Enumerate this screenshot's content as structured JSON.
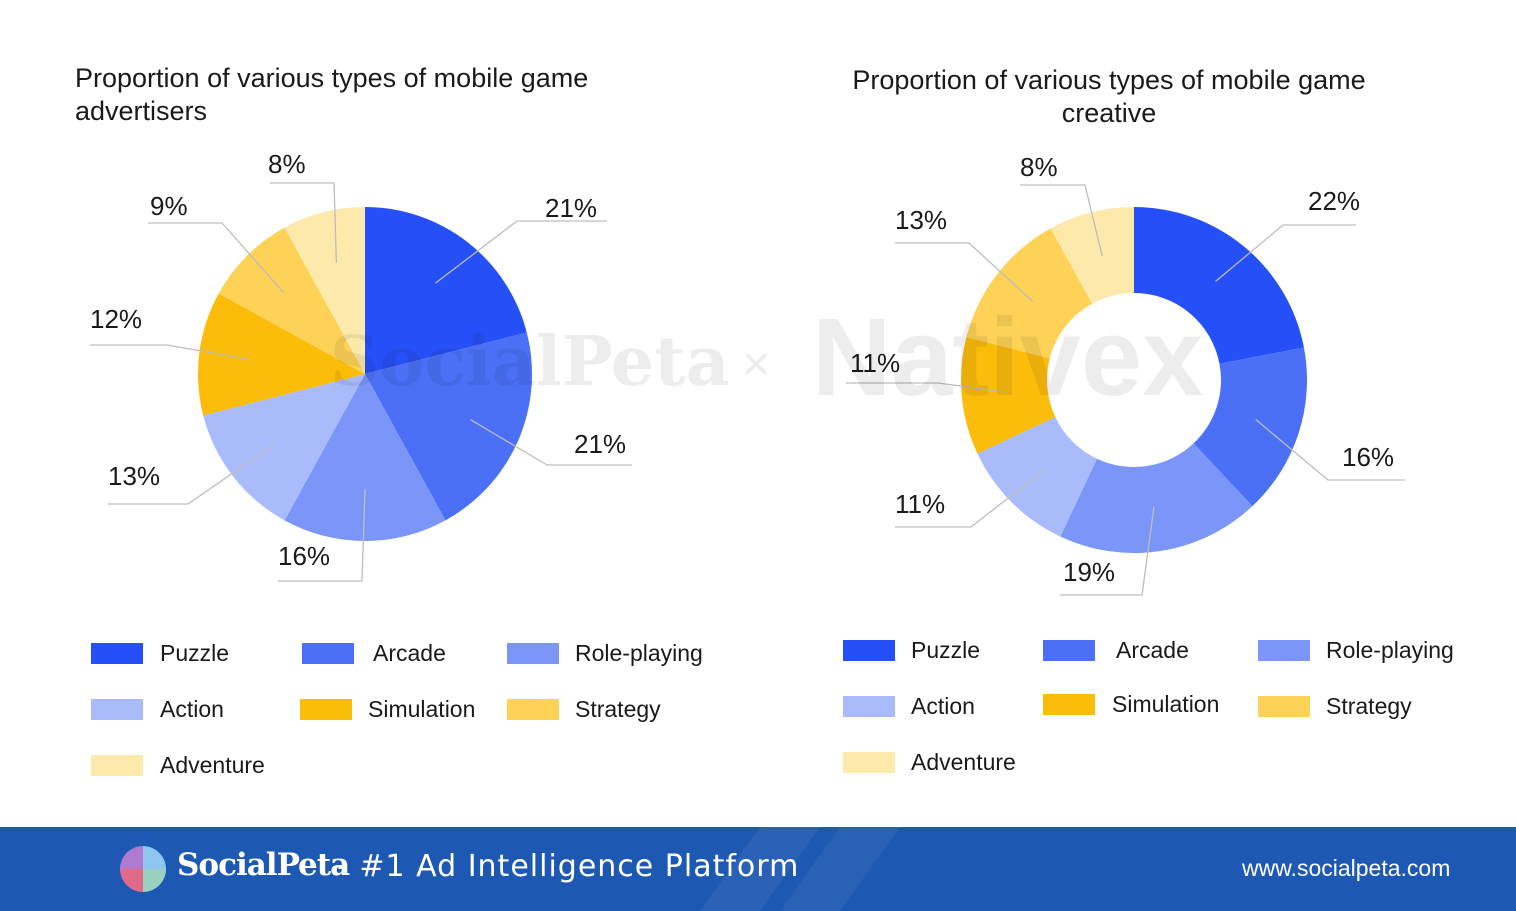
{
  "chart_data": [
    {
      "type": "pie",
      "title": "Proportion of various types of mobile game advertisers",
      "categories": [
        "Puzzle",
        "Arcade",
        "Role-playing",
        "Action",
        "Simulation",
        "Strategy",
        "Adventure"
      ],
      "values": [
        21,
        21,
        16,
        13,
        12,
        9,
        8
      ],
      "labels": [
        "21%",
        "21%",
        "16%",
        "13%",
        "12%",
        "9%",
        "8%"
      ],
      "legend_position": "bottom"
    },
    {
      "type": "pie",
      "donut": true,
      "title": "Proportion of various types of mobile game creative",
      "categories": [
        "Puzzle",
        "Arcade",
        "Role-playing",
        "Action",
        "Simulation",
        "Strategy",
        "Adventure"
      ],
      "values": [
        22,
        16,
        19,
        11,
        11,
        13,
        8
      ],
      "labels": [
        "22%",
        "16%",
        "19%",
        "11%",
        "11%",
        "13%",
        "8%"
      ],
      "legend_position": "bottom"
    }
  ],
  "colors": {
    "Puzzle": "#2650f7",
    "Arcade": "#4b70f6",
    "Role-playing": "#7b96f8",
    "Action": "#aabbfb",
    "Simulation": "#fbbc0a",
    "Strategy": "#fdd257",
    "Adventure": "#fde9aa",
    "footer_bg": "#1d58b3"
  },
  "footer": {
    "brand": "SocialPeta",
    "tagline": "- #1 Ad Intelligence Platform",
    "url": "www.socialpeta.com",
    "logo_icon": "socialpeta-logo-icon"
  },
  "watermark": {
    "left": "SocialPeta",
    "separator": "×",
    "right": "Nativex"
  }
}
